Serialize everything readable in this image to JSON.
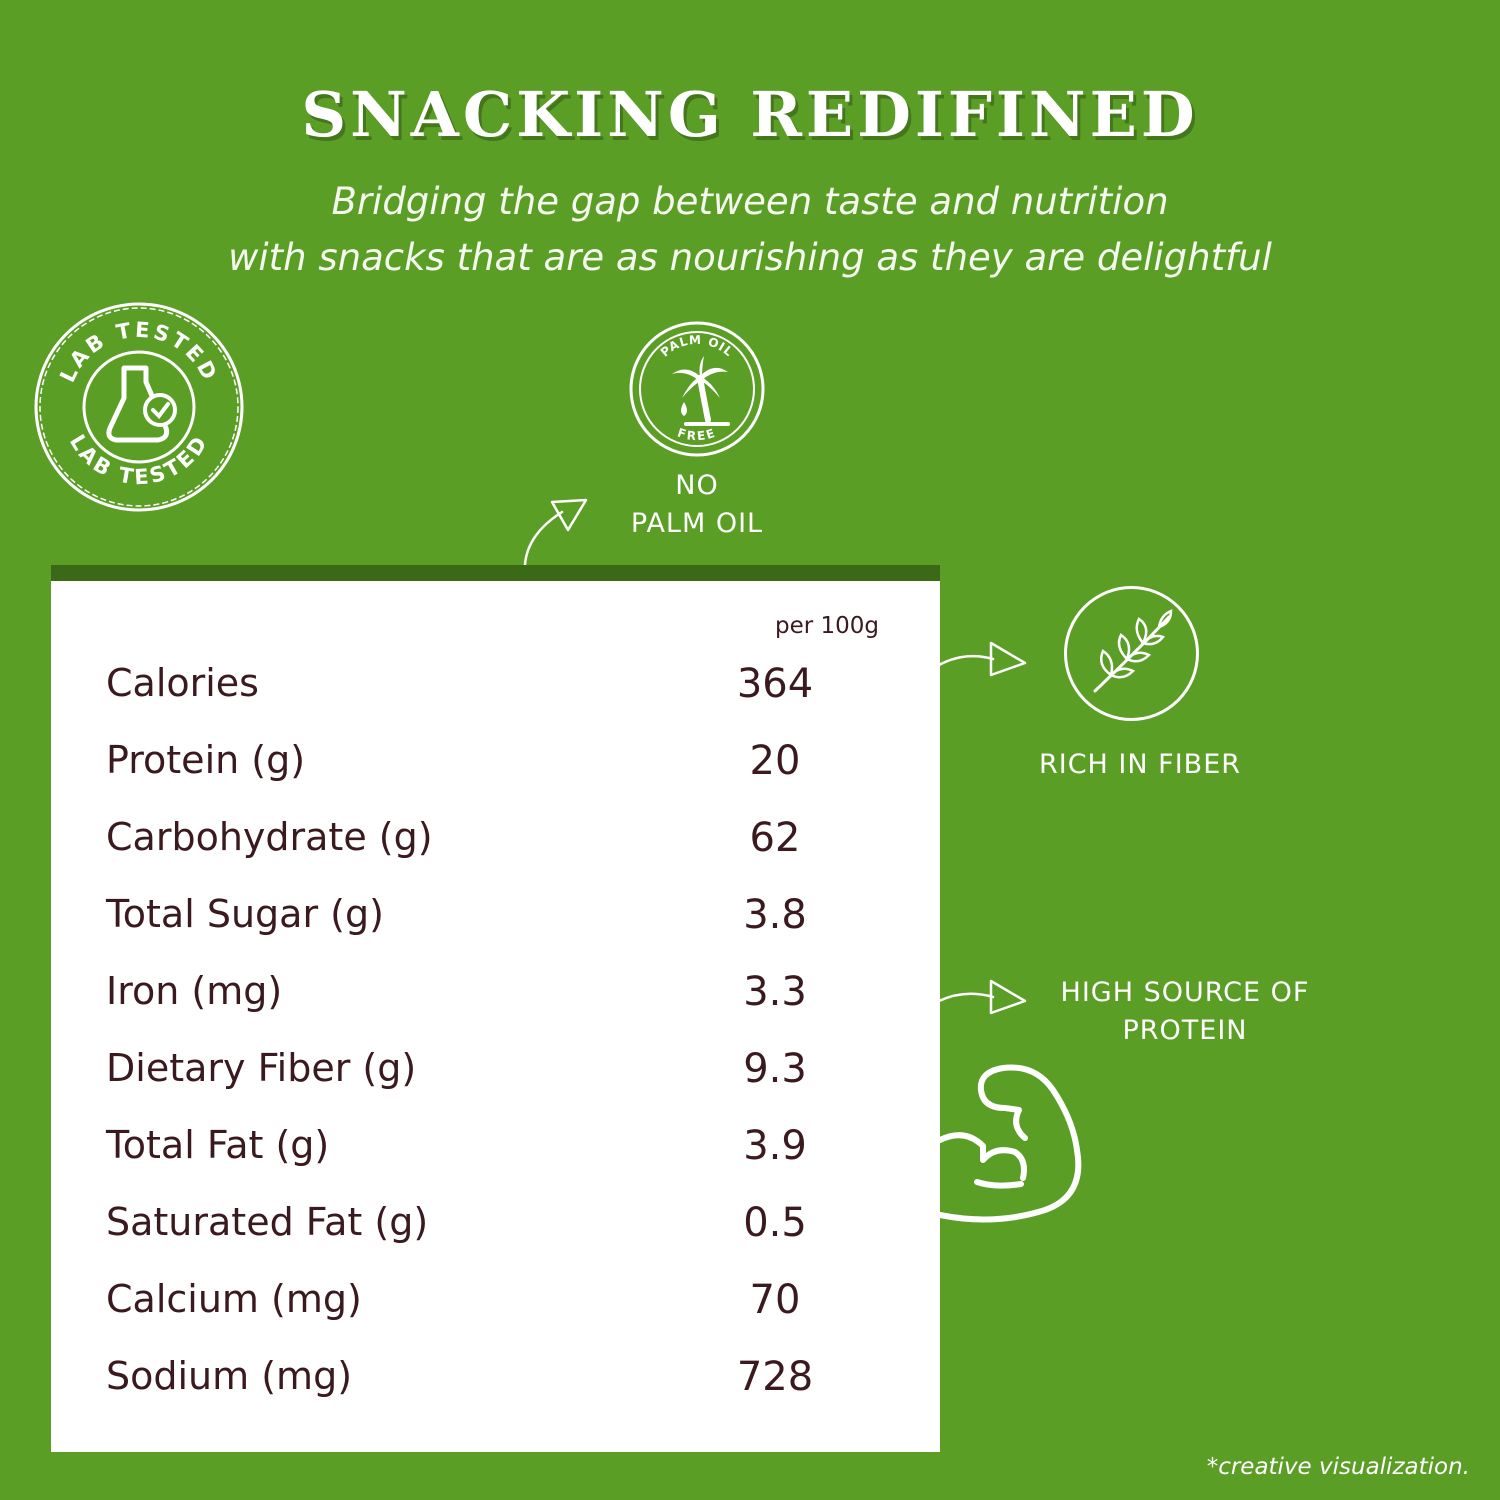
{
  "header": {
    "title": "SNACKING REDIFINED",
    "subtitle_line1": "Bridging the gap between taste and nutrition",
    "subtitle_line2": "with snacks that are as nourishing as they are delightful"
  },
  "badges": {
    "lab_tested_text": "LAB TESTED",
    "palm_oil_top": "PALM OIL",
    "palm_oil_bottom": "FREE"
  },
  "features": {
    "no_palm_oil_line1": "NO",
    "no_palm_oil_line2": "PALM OIL",
    "rich_in_fiber": "RICH IN FIBER",
    "protein_line1": "HIGH SOURCE OF",
    "protein_line2": "PROTEIN"
  },
  "nutrition": {
    "column_header": "per 100g",
    "rows": [
      {
        "name": "Calories",
        "value": "364"
      },
      {
        "name": "Protein (g)",
        "value": "20"
      },
      {
        "name": "Carbohydrate (g)",
        "value": "62"
      },
      {
        "name": "Total Sugar (g)",
        "value": "3.8"
      },
      {
        "name": "Iron (mg)",
        "value": "3.3"
      },
      {
        "name": "Dietary Fiber (g)",
        "value": "9.3"
      },
      {
        "name": "Total Fat (g)",
        "value": "3.9"
      },
      {
        "name": "Saturated Fat (g)",
        "value": "0.5"
      },
      {
        "name": "Calcium (mg)",
        "value": "70"
      },
      {
        "name": "Sodium (mg)",
        "value": "728"
      }
    ]
  },
  "footnote": "*creative visualization.",
  "colors": {
    "background": "#5b9e26",
    "table_header_bar": "#3b6a17",
    "table_text": "#3a1a1e",
    "icon_stroke": "#ffffff"
  }
}
